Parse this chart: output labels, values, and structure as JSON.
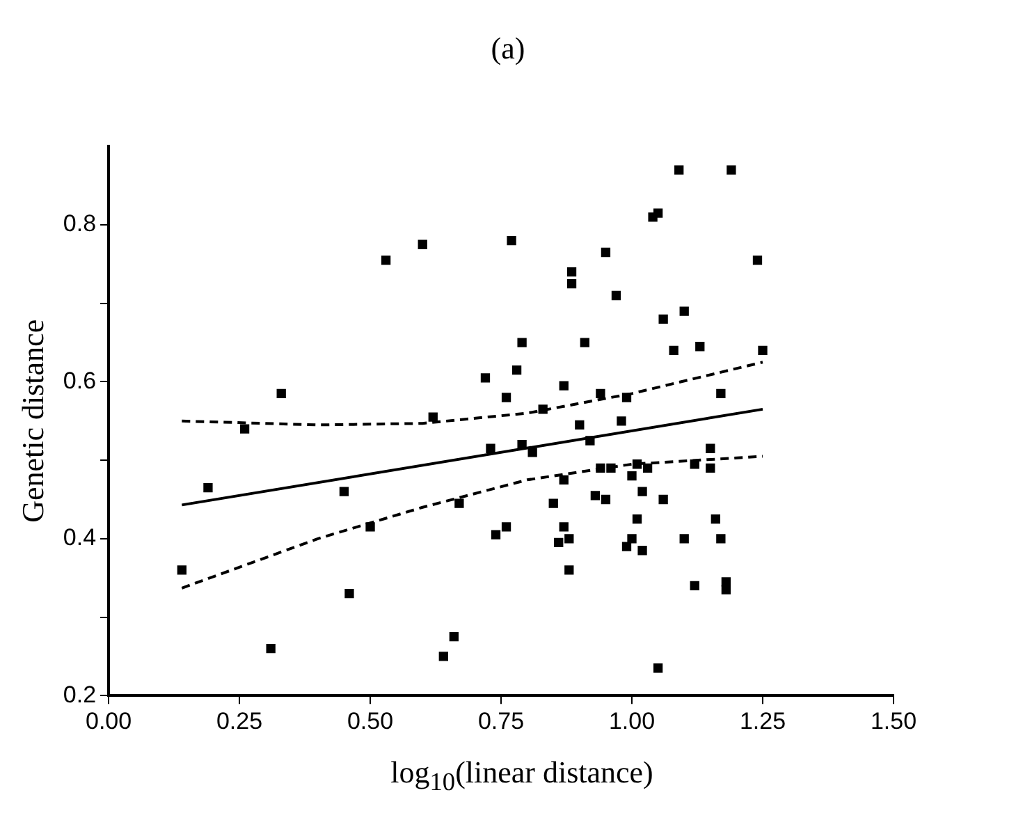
{
  "chart_data": {
    "type": "scatter",
    "title": "(a)",
    "xlabel": "log$_{10}$(linear distance)",
    "ylabel": "Genetic distance",
    "xlim": [
      0,
      1.5
    ],
    "ylim": [
      0.2,
      0.9
    ],
    "xticks": [
      {
        "value": 0,
        "label": "0.00"
      },
      {
        "value": 0.25,
        "label": "0.25"
      },
      {
        "value": 0.5,
        "label": "0.50"
      },
      {
        "value": 0.75,
        "label": "0.75"
      },
      {
        "value": 1,
        "label": "1.00"
      },
      {
        "value": 1.25,
        "label": "1.25"
      },
      {
        "value": 1.5,
        "label": "1.50"
      }
    ],
    "yticks": [
      0.2,
      {
        "value": 0.3,
        "label": null
      },
      0.4,
      {
        "value": 0.5,
        "label": null
      },
      0.6,
      {
        "value": 0.7,
        "label": null
      },
      0.8
    ],
    "grid": false,
    "legend": false,
    "marker": "square",
    "series": [
      {
        "color": "#000000",
        "x": [
          0.14,
          0.19,
          0.26,
          0.31,
          0.33,
          0.45,
          0.46,
          0.5,
          0.53,
          0.6,
          0.62,
          0.64,
          0.66,
          0.67,
          0.72,
          0.73,
          0.74,
          0.76,
          0.76,
          0.77,
          0.78,
          0.79,
          0.79,
          0.81,
          0.83,
          0.85,
          0.86,
          0.87,
          0.87,
          0.87,
          0.88,
          0.88,
          0.885,
          0.885,
          0.9,
          0.91,
          0.92,
          0.93,
          0.94,
          0.94,
          0.95,
          0.95,
          0.96,
          0.97,
          0.98,
          0.99,
          0.99,
          1,
          1,
          1.01,
          1.01,
          1.02,
          1.02,
          1.03,
          1.04,
          1.05,
          1.05,
          1.06,
          1.06,
          1.08,
          1.09,
          1.1,
          1.1,
          1.12,
          1.12,
          1.13,
          1.15,
          1.15,
          1.16,
          1.17,
          1.17,
          1.18,
          1.18,
          1.19,
          1.24,
          1.25
        ],
        "values": [
          0.36,
          0.465,
          0.54,
          0.26,
          0.585,
          0.46,
          0.33,
          0.415,
          0.755,
          0.775,
          0.555,
          0.25,
          0.275,
          0.445,
          0.605,
          0.515,
          0.405,
          0.58,
          0.415,
          0.78,
          0.615,
          0.65,
          0.52,
          0.51,
          0.565,
          0.445,
          0.395,
          0.475,
          0.415,
          0.595,
          0.4,
          0.36,
          0.74,
          0.725,
          0.545,
          0.65,
          0.525,
          0.455,
          0.585,
          0.49,
          0.765,
          0.45,
          0.49,
          0.71,
          0.55,
          0.58,
          0.39,
          0.48,
          0.4,
          0.495,
          0.425,
          0.46,
          0.385,
          0.49,
          0.81,
          0.815,
          0.235,
          0.68,
          0.45,
          0.64,
          0.87,
          0.69,
          0.4,
          0.495,
          0.34,
          0.645,
          0.49,
          0.515,
          0.425,
          0.585,
          0.4,
          0.345,
          0.335,
          0.87,
          0.755,
          0.64
        ]
      },
      {
        "type": "line",
        "color": "#000000",
        "line_style": "solid",
        "marker": "none",
        "x": [
          0.14,
          1.25
        ],
        "values": [
          0.443,
          0.565
        ]
      },
      {
        "type": "line",
        "color": "#000000",
        "line_style": "dashed",
        "marker": "none",
        "x": [
          0.14,
          0.4,
          0.6,
          0.8,
          1,
          1.25
        ],
        "values": [
          0.55,
          0.545,
          0.547,
          0.56,
          0.585,
          0.625
        ]
      },
      {
        "type": "line",
        "color": "#000000",
        "line_style": "dashed",
        "marker": "none",
        "x": [
          0.14,
          0.4,
          0.6,
          0.8,
          1,
          1.25
        ],
        "values": [
          0.337,
          0.4,
          0.44,
          0.475,
          0.495,
          0.505
        ]
      }
    ]
  }
}
